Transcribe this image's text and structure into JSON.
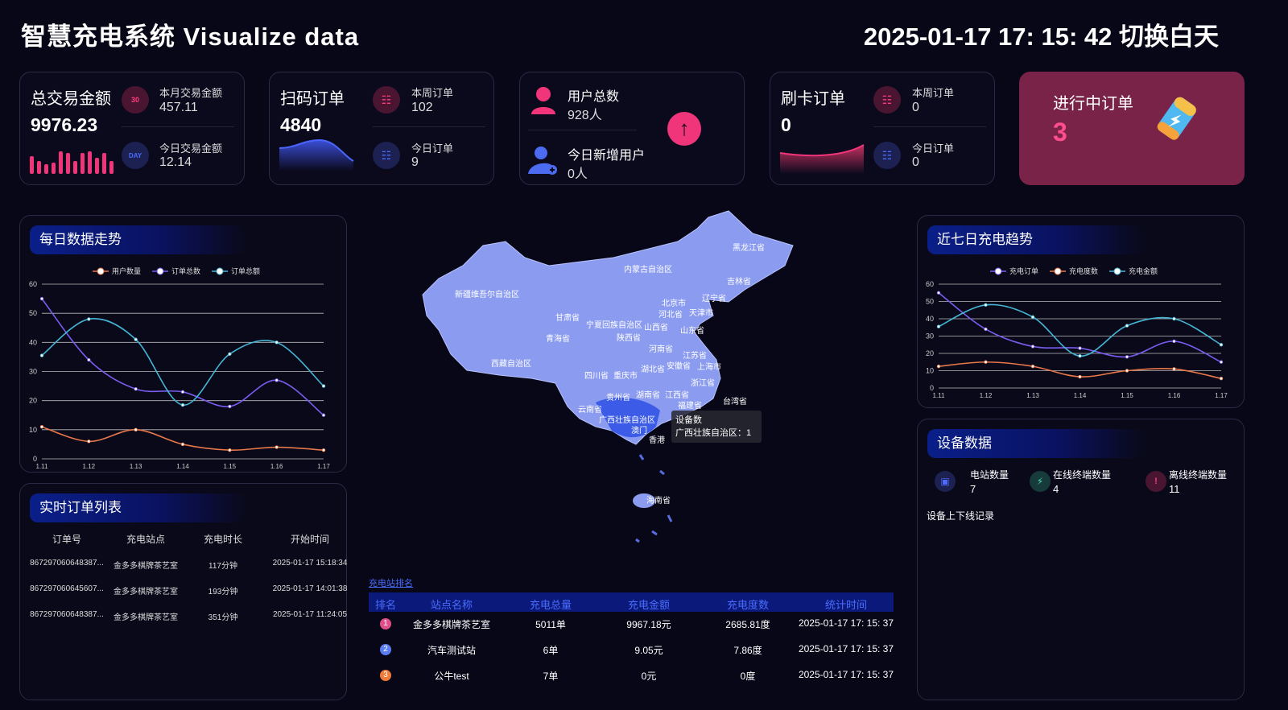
{
  "header": {
    "title": "智慧充电系统 Visualize data",
    "datetime": "2025-01-17 17: 15: 42",
    "theme_toggle": "切换白天"
  },
  "cards": {
    "total_trade": {
      "label": "总交易金额",
      "value": "9976.23",
      "month_label": "本月交易金额",
      "month_value": "457.11",
      "today_label": "今日交易金额",
      "today_value": "12.14",
      "month_icon_text": "30",
      "today_icon_text": "DAY"
    },
    "scan_orders": {
      "label": "扫码订单",
      "value": "4840",
      "week_label": "本周订单",
      "week_value": "102",
      "today_label": "今日订单",
      "today_value": "9"
    },
    "users": {
      "total_label": "用户总数",
      "total_value": "928人",
      "new_label": "今日新增用户",
      "new_value": "0人"
    },
    "card_orders": {
      "label": "刷卡订单",
      "value": "0",
      "week_label": "本周订单",
      "week_value": "0",
      "today_label": "今日订单",
      "today_value": "0"
    },
    "ongoing": {
      "label": "进行中订单",
      "value": "3"
    }
  },
  "daily_trend": {
    "title": "每日数据走势"
  },
  "weekly_trend": {
    "title": "近七日充电趋势"
  },
  "chart_data": [
    {
      "type": "line",
      "xlabel": "",
      "ylabel": "",
      "categories": [
        "1.11",
        "1.12",
        "1.13",
        "1.14",
        "1.15",
        "1.16",
        "1.17"
      ],
      "ylim": [
        0,
        60
      ],
      "yticks": [
        0,
        10,
        20,
        30,
        40,
        50,
        60
      ],
      "grid": true,
      "legend": "top-center",
      "series": [
        {
          "name": "用户数量",
          "color": "#e8784a",
          "values": [
            11,
            6,
            10,
            5,
            3,
            4,
            3
          ]
        },
        {
          "name": "订单总数",
          "color": "#7b5cf0",
          "values": [
            55,
            34,
            24,
            23,
            18,
            27,
            15
          ]
        },
        {
          "name": "订单总额",
          "color": "#45b6d6",
          "values": [
            35.5,
            48,
            41,
            18.5,
            36,
            40,
            25
          ]
        }
      ]
    },
    {
      "type": "line",
      "xlabel": "",
      "ylabel": "",
      "categories": [
        "1.11",
        "1.12",
        "1.13",
        "1.14",
        "1.15",
        "1.16",
        "1.17"
      ],
      "ylim": [
        0,
        60
      ],
      "yticks": [
        0,
        10,
        20,
        30,
        40,
        50,
        60
      ],
      "grid": true,
      "legend": "top-center",
      "series": [
        {
          "name": "充电订单",
          "color": "#7b5cf0",
          "values": [
            55,
            34,
            24,
            23,
            18,
            27,
            15
          ]
        },
        {
          "name": "充电度数",
          "color": "#e8784a",
          "values": [
            12.5,
            15,
            12.5,
            6.5,
            10,
            11,
            5.5
          ]
        },
        {
          "name": "充电金额",
          "color": "#45b6d6",
          "values": [
            35.5,
            48,
            41,
            18.5,
            36,
            40,
            25
          ]
        }
      ]
    }
  ],
  "orders": {
    "title": "实时订单列表",
    "columns": [
      "订单号",
      "充电站点",
      "充电时长",
      "开始时间"
    ],
    "rows": [
      [
        "867297060648387...",
        "金多多棋牌茶艺室",
        "117分钟",
        "2025-01-17 15:18:34"
      ],
      [
        "867297060645607...",
        "金多多棋牌茶艺室",
        "193分钟",
        "2025-01-17 14:01:38"
      ],
      [
        "867297060648387...",
        "金多多棋牌茶艺室",
        "351分钟",
        "2025-01-17 11:24:05"
      ]
    ]
  },
  "map": {
    "provinces": [
      "黑龙江省",
      "内蒙古自治区",
      "吉林省",
      "新疆维吾尔自治区",
      "北京市",
      "辽宁省",
      "天津市",
      "甘肃省",
      "宁夏回族自治区",
      "山西省",
      "河北省",
      "山东省",
      "青海省",
      "陕西省",
      "河南省",
      "江苏省",
      "安徽省",
      "上海市",
      "西藏自治区",
      "四川省",
      "重庆市",
      "湖北省",
      "浙江省",
      "贵州省",
      "湖南省",
      "江西省",
      "福建省",
      "云南省",
      "广西壮族自治区",
      "台湾省",
      "澳门",
      "香港",
      "海南省"
    ],
    "tooltip_title": "设备数",
    "tooltip_value": "广西壮族自治区：1"
  },
  "ranking": {
    "title": "充电站排名",
    "columns": [
      "排名",
      "站点名称",
      "充电总量",
      "充电金额",
      "充电度数",
      "统计时间"
    ],
    "rows": [
      [
        "1",
        "金多多棋牌茶艺室",
        "5011单",
        "9967.18元",
        "2685.81度",
        "2025-01-17 17: 15: 37"
      ],
      [
        "2",
        "汽车测试站",
        "6单",
        "9.05元",
        "7.86度",
        "2025-01-17 17: 15: 37"
      ],
      [
        "3",
        "公牛test",
        "7单",
        "0元",
        "0度",
        "2025-01-17 17: 15: 37"
      ]
    ],
    "rank_colors": [
      "#e04f8a",
      "#5b7cf5",
      "#f07a3a"
    ]
  },
  "devices": {
    "title": "设备数据",
    "stations_label": "电站数量",
    "stations_value": "7",
    "online_label": "在线终端数量",
    "online_value": "4",
    "offline_label": "离线终端数量",
    "offline_value": "11",
    "log_title": "设备上下线记录"
  }
}
